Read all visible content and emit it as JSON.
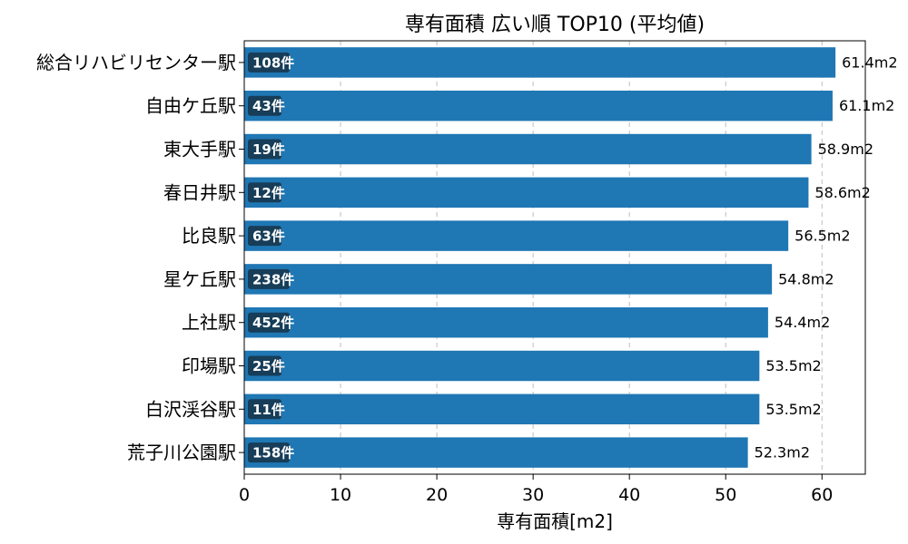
{
  "chart_data": {
    "type": "bar",
    "orientation": "horizontal",
    "title": "専有面積 広い順 TOP10 (平均値)",
    "xlabel": "専有面積[m2]",
    "ylabel": "",
    "xlim": [
      0,
      64.5
    ],
    "xticks": [
      0,
      10,
      20,
      30,
      40,
      50,
      60
    ],
    "grid": "x-dashed",
    "bar_color": "#1f77b4",
    "badge_color": "#173d58",
    "categories": [
      "総合リハビリセンター駅",
      "自由ケ丘駅",
      "東大手駅",
      "春日井駅",
      "比良駅",
      "星ケ丘駅",
      "上社駅",
      "印場駅",
      "白沢渓谷駅",
      "荒子川公園駅"
    ],
    "values": [
      61.4,
      61.1,
      58.9,
      58.6,
      56.5,
      54.8,
      54.4,
      53.5,
      53.5,
      52.3
    ],
    "value_labels": [
      "61.4m2",
      "61.1m2",
      "58.9m2",
      "58.6m2",
      "56.5m2",
      "54.8m2",
      "54.4m2",
      "53.5m2",
      "53.5m2",
      "52.3m2"
    ],
    "counts": [
      "108件",
      "43件",
      "19件",
      "12件",
      "63件",
      "238件",
      "452件",
      "25件",
      "11件",
      "158件"
    ]
  }
}
